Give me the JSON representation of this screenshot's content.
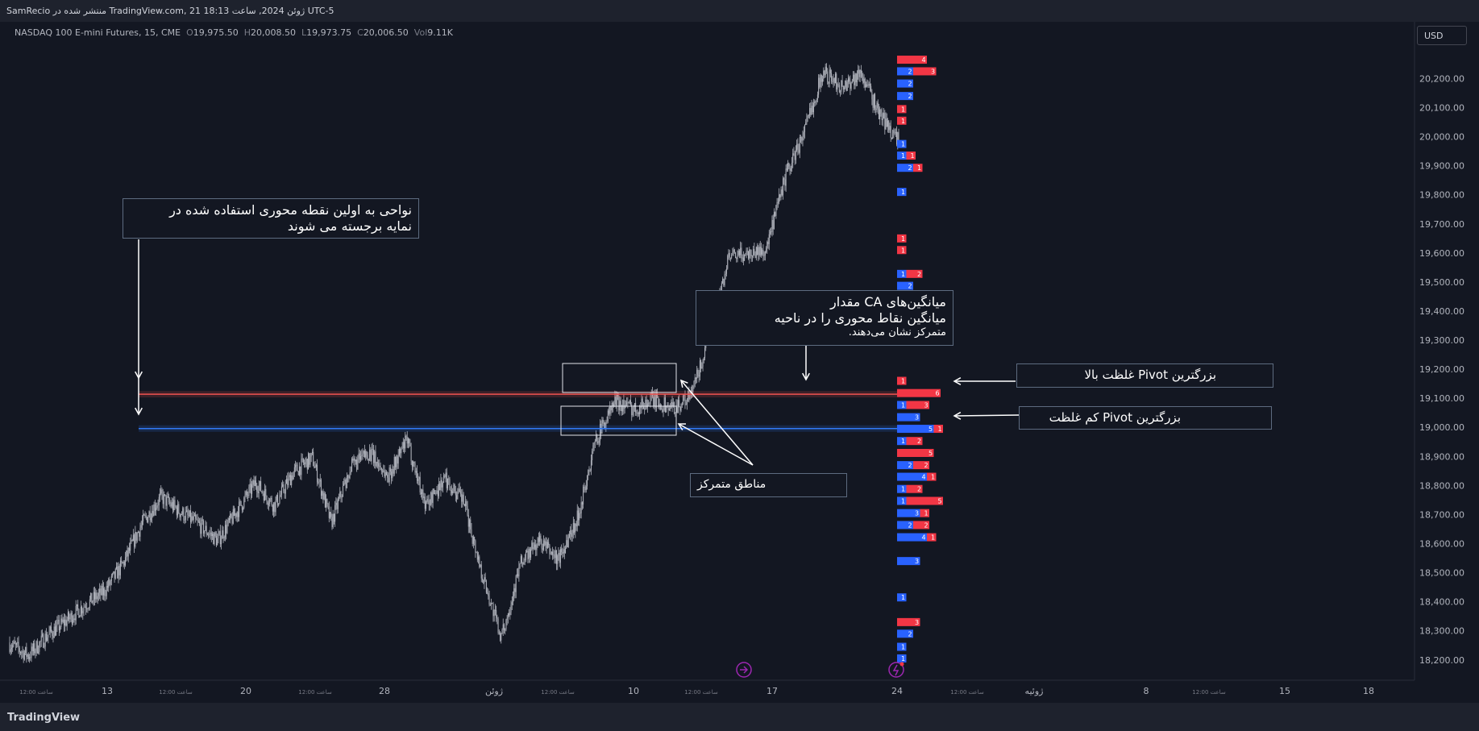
{
  "header": {
    "published": "SamRecio منتشر شده در TradingView.com, 21 ژوئن 2024, ساعت 18:13 UTC-5"
  },
  "legend": {
    "symbol": "NASDAQ 100 E-mini Futures, 15, CME",
    "o_label": "O",
    "o_value": "19,975.50",
    "h_label": "H",
    "h_value": "20,008.50",
    "l_label": "L",
    "l_value": "19,973.75",
    "c_label": "C",
    "c_value": "20,006.50",
    "vol_label": "Vol",
    "vol_value": "9.11K"
  },
  "currency_button": "USD",
  "footer": {
    "logo_text": "TradingView"
  },
  "annotations": {
    "first_pivot": [
      "نواحی به اولین نقطه محوری استفاده شده در",
      "نمایه برجسته می شوند"
    ],
    "ca_averages": [
      "میانگین‌های CA مقدار",
      "میانگین نقاط محوری را در ناحیه"
    ],
    "ca_averages_small": "متمرکز نشان می‌دهند.",
    "largest_high": "بزرگترین Pivot غلظت بالا",
    "largest_low": "بزرگترین Pivot کم غلظت",
    "zones": "مناطق متمرکز"
  },
  "colors": {
    "background": "#131722",
    "candle": "#b2b5be",
    "profile_blue": "#2962ff",
    "profile_red": "#f23645",
    "line_red": "#ef5350",
    "line_blue": "#3179f5",
    "annotation_border": "#5d6b80"
  },
  "chart_data": {
    "type": "candlestick",
    "title": "",
    "ylim": [
      18130,
      20340
    ],
    "y_ticks": [
      "18,200.00",
      "18,300.00",
      "18,400.00",
      "18,500.00",
      "18,600.00",
      "18,700.00",
      "18,800.00",
      "18,900.00",
      "19,000.00",
      "19,100.00",
      "19,200.00",
      "19,300.00",
      "19,400.00",
      "19,500.00",
      "19,600.00",
      "19,700.00",
      "19,800.00",
      "19,900.00",
      "20,000.00",
      "20,100.00",
      "20,200.00"
    ],
    "y_tick_values": [
      18200,
      18300,
      18400,
      18500,
      18600,
      18700,
      18800,
      18900,
      19000,
      19100,
      19200,
      19300,
      19400,
      19500,
      19600,
      19700,
      19800,
      19900,
      20000,
      20100,
      20200
    ],
    "x_labels": [
      {
        "label": "13",
        "big": true
      },
      {
        "label": "20",
        "big": true
      },
      {
        "label": "28",
        "big": true
      },
      {
        "label": "ژوئن",
        "big": true
      },
      {
        "label": "10",
        "big": true
      },
      {
        "label": "17",
        "big": true
      },
      {
        "label": "24",
        "big": true
      },
      {
        "label": "ژوئیه",
        "big": true
      },
      {
        "label": "8",
        "big": true
      },
      {
        "label": "15",
        "big": true
      },
      {
        "label": "18",
        "big": true
      },
      {
        "label": "12:00 ساعت",
        "big": false
      },
      {
        "label": "12:00 ساعت",
        "big": false
      },
      {
        "label": "12:00 ساعت",
        "big": false
      },
      {
        "label": "12:00 ساعت",
        "big": false
      },
      {
        "label": "12:00 ساعت",
        "big": false
      },
      {
        "label": "12:00 ساعت",
        "big": false
      },
      {
        "label": "12:00 ساعت",
        "big": false
      }
    ],
    "price_path": [
      [
        18260,
        18250
      ],
      [
        18230,
        18200
      ],
      [
        18290,
        18280
      ],
      [
        18330,
        18340
      ],
      [
        18400,
        18380
      ],
      [
        18450,
        18420
      ],
      [
        18560,
        18500
      ],
      [
        18680,
        18660
      ],
      [
        18770,
        18750
      ],
      [
        18700,
        18720
      ],
      [
        18650,
        18680
      ],
      [
        18620,
        18600
      ],
      [
        18720,
        18700
      ],
      [
        18800,
        18820
      ],
      [
        18740,
        18720
      ],
      [
        18850,
        18840
      ],
      [
        18990,
        18800
      ],
      [
        18700,
        18640
      ],
      [
        18850,
        18870
      ],
      [
        18900,
        18930
      ],
      [
        18840,
        18820
      ],
      [
        18950,
        18960
      ],
      [
        18760,
        18700
      ],
      [
        18820,
        18830
      ],
      [
        18770,
        18720
      ],
      [
        18500,
        18480
      ],
      [
        18290,
        18260
      ],
      [
        18560,
        18500
      ],
      [
        18600,
        18620
      ],
      [
        18560,
        18530
      ],
      [
        18680,
        18690
      ],
      [
        18920,
        19000
      ],
      [
        19100,
        19080
      ],
      [
        19070,
        19060
      ],
      [
        19090,
        19100
      ],
      [
        19060,
        19070
      ],
      [
        19110,
        19100
      ],
      [
        19300,
        19320
      ],
      [
        19560,
        19600
      ],
      [
        19650,
        19550
      ],
      [
        19600,
        19620
      ],
      [
        19820,
        19900
      ],
      [
        19980,
        20050
      ],
      [
        20250,
        20200
      ],
      [
        20180,
        20160
      ],
      [
        20210,
        20230
      ],
      [
        20100,
        20050
      ],
      [
        19990,
        19980
      ]
    ],
    "pivot_lines": [
      {
        "name": "high",
        "price": 19114,
        "color": "#ef5350"
      },
      {
        "name": "low",
        "price": 18996,
        "color": "#3179f5"
      }
    ],
    "volume_profile": [
      {
        "price": 20265,
        "blue": 0,
        "red": 4
      },
      {
        "price": 20225,
        "blue": 2,
        "red": 3
      },
      {
        "price": 20183,
        "blue": 2,
        "red": 0
      },
      {
        "price": 20140,
        "blue": 2,
        "red": 0
      },
      {
        "price": 20095,
        "blue": 0,
        "red": 1
      },
      {
        "price": 20055,
        "blue": 0,
        "red": 1
      },
      {
        "price": 19975,
        "blue": 1,
        "red": 0
      },
      {
        "price": 19935,
        "blue": 1,
        "red": 1
      },
      {
        "price": 19893,
        "blue": 2,
        "red": 1
      },
      {
        "price": 19810,
        "blue": 1,
        "red": 0
      },
      {
        "price": 19650,
        "blue": 0,
        "red": 1
      },
      {
        "price": 19610,
        "blue": 0,
        "red": 1
      },
      {
        "price": 19528,
        "blue": 1,
        "red": 2
      },
      {
        "price": 19487,
        "blue": 2,
        "red": 0
      },
      {
        "price": 19445,
        "blue": 1,
        "red": 0
      },
      {
        "price": 19160,
        "blue": 0,
        "red": 1
      },
      {
        "price": 19118,
        "blue": 0,
        "red": 6
      },
      {
        "price": 19077,
        "blue": 1,
        "red": 3
      },
      {
        "price": 19035,
        "blue": 3,
        "red": 0
      },
      {
        "price": 18995,
        "blue": 5,
        "red": 1
      },
      {
        "price": 18953,
        "blue": 1,
        "red": 2
      },
      {
        "price": 18912,
        "blue": 0,
        "red": 5
      },
      {
        "price": 18870,
        "blue": 2,
        "red": 2
      },
      {
        "price": 18830,
        "blue": 4,
        "red": 1
      },
      {
        "price": 18788,
        "blue": 1,
        "red": 2
      },
      {
        "price": 18747,
        "blue": 1,
        "red": 5
      },
      {
        "price": 18705,
        "blue": 3,
        "red": 1
      },
      {
        "price": 18664,
        "blue": 2,
        "red": 2
      },
      {
        "price": 18622,
        "blue": 4,
        "red": 1
      },
      {
        "price": 18540,
        "blue": 3,
        "red": 0
      },
      {
        "price": 18415,
        "blue": 1,
        "red": 0
      },
      {
        "price": 18330,
        "blue": 0,
        "red": 3
      },
      {
        "price": 18290,
        "blue": 2,
        "red": 0
      },
      {
        "price": 18245,
        "blue": 1,
        "red": 0
      },
      {
        "price": 18205,
        "blue": 1,
        "red": 0
      }
    ]
  }
}
